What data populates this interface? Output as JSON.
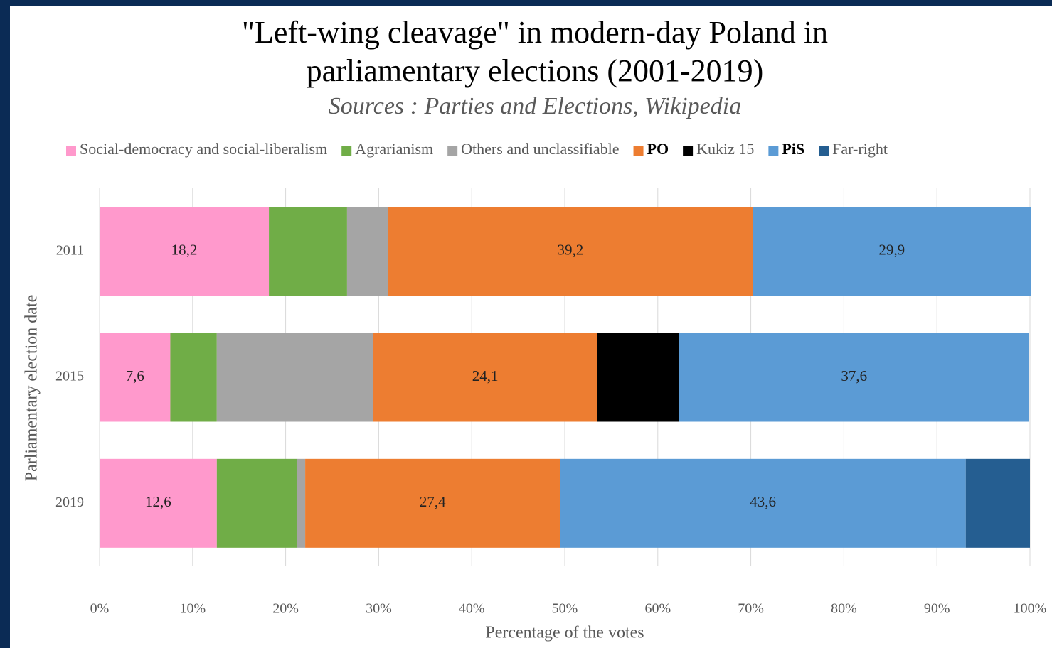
{
  "chart_data": {
    "type": "stacked_bar_horizontal",
    "title": [
      "\"Left-wing cleavage\" in modern-day Poland in",
      "parliamentary elections (2001-2019)"
    ],
    "subtitle": "Sources : Parties and Elections, Wikipedia",
    "x_label": "Percentage of the votes",
    "y_label": "Parliamentary election date",
    "categories": [
      "2011",
      "2015",
      "2019"
    ],
    "series": [
      {
        "name": "Social-democracy and social-liberalism",
        "color": "#ff99cc",
        "bold": false,
        "values": [
          18.2,
          7.6,
          12.6
        ],
        "value_labels": [
          "18,2",
          "7,6",
          "12,6"
        ]
      },
      {
        "name": "Agrarianism",
        "color": "#70ad47",
        "bold": false,
        "values": [
          8.4,
          5.0,
          8.6
        ],
        "value_labels": [
          null,
          null,
          null
        ]
      },
      {
        "name": "Others and unclassifiable",
        "color": "#a5a5a5",
        "bold": false,
        "values": [
          4.4,
          16.8,
          0.9
        ],
        "value_labels": [
          null,
          null,
          null
        ]
      },
      {
        "name": "PO",
        "color": "#ed7d31",
        "bold": true,
        "values": [
          39.2,
          24.1,
          27.4
        ],
        "value_labels": [
          "39,2",
          "24,1",
          "27,4"
        ]
      },
      {
        "name": "Kukiz 15",
        "color": "#000000",
        "bold": false,
        "values": [
          0,
          8.8,
          0
        ],
        "value_labels": [
          null,
          null,
          null
        ]
      },
      {
        "name": "PiS",
        "color": "#5b9bd5",
        "bold": true,
        "values": [
          29.9,
          37.6,
          43.6
        ],
        "value_labels": [
          "29,9",
          "37,6",
          "43,6"
        ]
      },
      {
        "name": "Far-right",
        "color": "#255e91",
        "bold": false,
        "values": [
          0,
          0,
          6.9
        ],
        "value_labels": [
          null,
          null,
          null
        ]
      }
    ],
    "xlim": [
      0,
      100
    ],
    "xticks": [
      {
        "value": 0,
        "label": "0%"
      },
      {
        "value": 10,
        "label": "10%"
      },
      {
        "value": 20,
        "label": "20%"
      },
      {
        "value": 30,
        "label": "30%"
      },
      {
        "value": 40,
        "label": "40%"
      },
      {
        "value": 50,
        "label": "50%"
      },
      {
        "value": 60,
        "label": "60%"
      },
      {
        "value": 70,
        "label": "70%"
      },
      {
        "value": 80,
        "label": "80%"
      },
      {
        "value": 90,
        "label": "90%"
      },
      {
        "value": 100,
        "label": "100%"
      }
    ],
    "grid": true,
    "legend": "top"
  }
}
